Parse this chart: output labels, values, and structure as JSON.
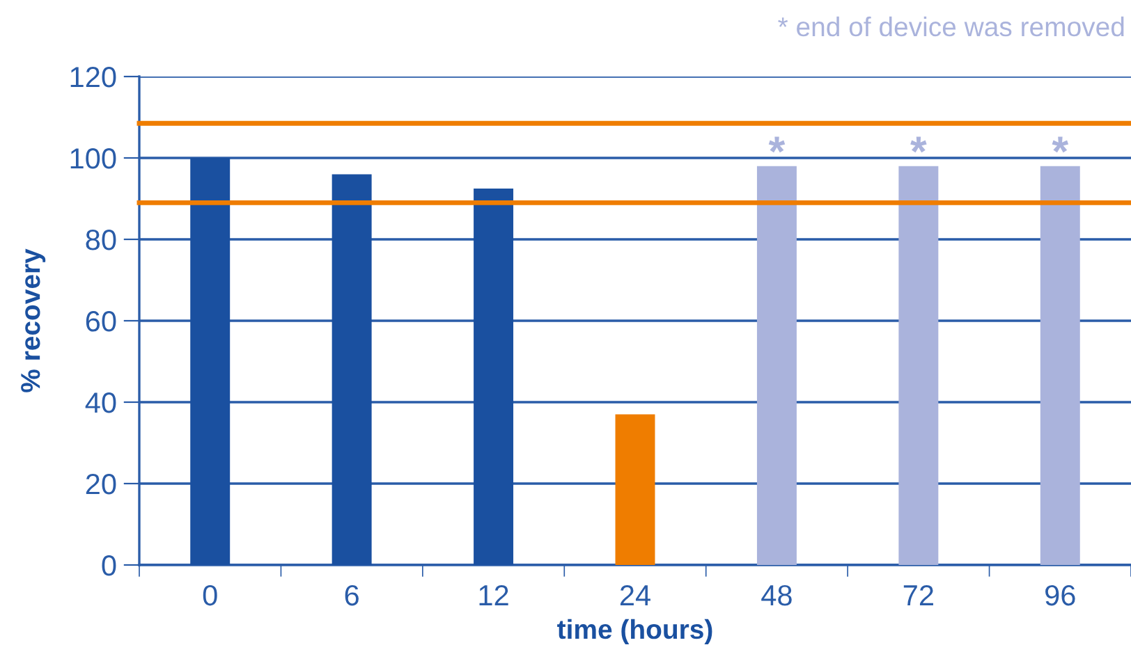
{
  "chart_data": {
    "type": "bar",
    "categories": [
      "0",
      "6",
      "12",
      "24",
      "48",
      "72",
      "96"
    ],
    "values": [
      100,
      96,
      92.5,
      37,
      98,
      98,
      98
    ],
    "colors": [
      "#1a50a0",
      "#1a50a0",
      "#1a50a0",
      "#ef7d00",
      "#aab3dc",
      "#aab3dc",
      "#aab3dc"
    ],
    "xlabel": "time (hours)",
    "ylabel": "% recovery",
    "ylim": [
      0,
      120
    ],
    "yticks": [
      0,
      20,
      40,
      60,
      80,
      100,
      120
    ],
    "grid": "y",
    "ref_lines": [
      {
        "axis": "y",
        "value": 108.5,
        "color": "#ef7d00"
      },
      {
        "axis": "y",
        "value": 89,
        "color": "#ef7d00"
      }
    ],
    "annotations": [
      "* end of device was removed",
      {
        "text": "*",
        "x": "48",
        "y": 98
      },
      {
        "text": "*",
        "x": "72",
        "y": 98
      },
      {
        "text": "*",
        "x": "96",
        "y": 98
      }
    ]
  }
}
